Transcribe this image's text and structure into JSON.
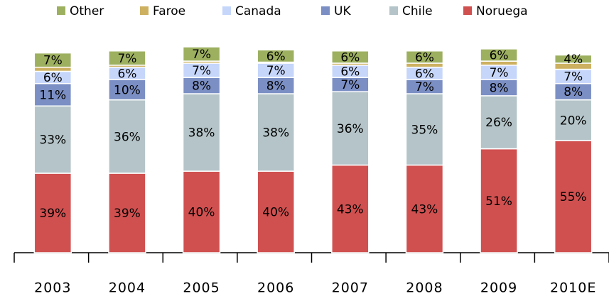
{
  "chart_data": {
    "type": "bar",
    "stacked": true,
    "categories": [
      "2003",
      "2004",
      "2005",
      "2006",
      "2007",
      "2008",
      "2009",
      "2010E"
    ],
    "series": [
      {
        "name": "Other",
        "color": "#9db060",
        "values": [
          7,
          7,
          7,
          6,
          6,
          6,
          6,
          4
        ],
        "value_labels": [
          "7%",
          "7%",
          "7%",
          "6%",
          "6%",
          "6%",
          "6%",
          "4%"
        ]
      },
      {
        "name": "Faroe",
        "color": "#cdb060",
        "values": [
          2,
          1,
          1,
          0.5,
          1,
          2,
          2,
          3
        ]
      },
      {
        "name": "Canada",
        "color": "#c6d6fb",
        "values": [
          6,
          6,
          7,
          7,
          6,
          6,
          7,
          7
        ],
        "value_labels": [
          "6%",
          "6%",
          "7%",
          "7%",
          "6%",
          "6%",
          "7%",
          "7%"
        ]
      },
      {
        "name": "UK",
        "color": "#7b8fc4",
        "values": [
          11,
          10,
          8,
          8,
          7,
          7,
          8,
          8
        ],
        "value_labels": [
          "11%",
          "10%",
          "8%",
          "8%",
          "7%",
          "7%",
          "8%",
          "8%"
        ]
      },
      {
        "name": "Chile",
        "color": "#b4c4c8",
        "values": [
          33,
          36,
          38,
          38,
          36,
          35,
          26,
          20
        ],
        "value_labels": [
          "33%",
          "36%",
          "38%",
          "38%",
          "36%",
          "35%",
          "26%",
          "20%"
        ]
      },
      {
        "name": "Noruega",
        "color": "#d05050",
        "values": [
          39,
          39,
          40,
          40,
          43,
          43,
          51,
          55
        ],
        "value_labels": [
          "39%",
          "39%",
          "40%",
          "40%",
          "43%",
          "43%",
          "51%",
          "55%"
        ]
      }
    ]
  }
}
